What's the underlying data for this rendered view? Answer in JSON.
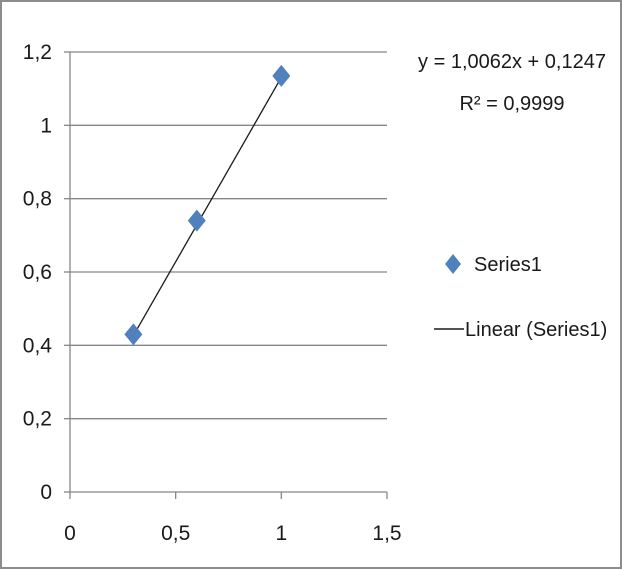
{
  "chart_data": {
    "type": "scatter",
    "title": "",
    "xlabel": "",
    "ylabel": "",
    "xlim": [
      0,
      1.5
    ],
    "ylim": [
      0,
      1.2
    ],
    "x_ticks": [
      "0",
      "0,5",
      "1",
      "1,5"
    ],
    "y_ticks": [
      "0",
      "0,2",
      "0,4",
      "0,6",
      "0,8",
      "1",
      "1,2"
    ],
    "grid": "horizontal",
    "legend_position": "right",
    "series": [
      {
        "name": "Series1",
        "marker": "diamond",
        "color": "#4f81bd",
        "x": [
          0.3,
          0.6,
          1.0
        ],
        "y": [
          0.43,
          0.74,
          1.135
        ]
      }
    ],
    "trendline": {
      "name": "Linear (Series1)",
      "type": "linear",
      "color": "#1a1a1a",
      "slope": 1.0062,
      "intercept": 0.1247,
      "x_range": [
        0.3,
        1.0
      ]
    },
    "annotations": {
      "equation": "y = 1,0062x + 0,1247",
      "r_squared": "R² = 0,9999"
    },
    "legend": {
      "series_label": "Series1",
      "trend_label": "Linear (Series1)"
    }
  }
}
